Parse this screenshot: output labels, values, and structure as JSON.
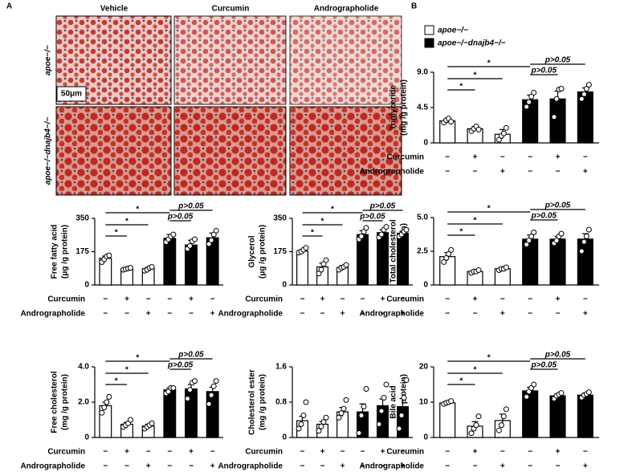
{
  "panel_labels": [
    "A",
    "B"
  ],
  "histology": {
    "columns": [
      "Vehicle",
      "Curcumin",
      "Andrographolide"
    ],
    "rows": [
      "apoe−/−",
      "apoe−/−dnajb4−/−"
    ],
    "scale_bar": "50μm"
  },
  "treatments": {
    "rows": [
      {
        "label": "Curcumin",
        "signs": [
          "−",
          "+",
          "−",
          "−",
          "+",
          "−"
        ]
      },
      {
        "label": "Andrographolide",
        "signs": [
          "−",
          "−",
          "+",
          "−",
          "−",
          "+"
        ]
      }
    ]
  },
  "chart_data": [
    {
      "type": "bar",
      "ylabel": [
        "Triglyceride",
        "(mg /g protein)"
      ],
      "ylim": [
        0,
        9
      ],
      "yticks": [
        0,
        4.5,
        {
          "value": 9,
          "label": "9.0"
        }
      ],
      "brackets": [
        "*",
        "*",
        "*",
        "p>0.05",
        "p>0.05"
      ],
      "series": [
        {
          "name": "apoe−/−",
          "color": "#ffffff",
          "values": [
            2.8,
            1.8,
            1.1
          ],
          "errors": [
            0.3,
            0.3,
            0.6
          ],
          "points": [
            [
              2.6,
              2.9,
              3.1,
              2.7
            ],
            [
              1.5,
              1.8,
              2.1,
              1.7
            ],
            [
              0.4,
              0.9,
              1.2,
              1.9
            ]
          ]
        },
        {
          "name": "apoe−/−dnajb4−/−",
          "color": "#000000",
          "values": [
            5.5,
            5.6,
            6.5
          ],
          "errors": [
            0.6,
            1.0,
            0.5
          ],
          "points": [
            [
              4.6,
              5.2,
              5.9,
              6.4
            ],
            [
              3.3,
              5.6,
              6.8,
              6.9
            ],
            [
              5.6,
              6.2,
              6.9,
              7.4
            ]
          ]
        }
      ]
    },
    {
      "type": "bar",
      "ylabel": [
        "Total cholesterol",
        "(mg /g protein)"
      ],
      "ylim": [
        0,
        5
      ],
      "yticks": [
        0,
        2.5,
        {
          "value": 5,
          "label": "5.0"
        }
      ],
      "brackets": [
        "*",
        "*",
        "*",
        "p>0.05",
        "p>0.05"
      ],
      "series": [
        {
          "name": "apoe−/−",
          "color": "#ffffff",
          "values": [
            2.1,
            1.0,
            1.2
          ],
          "errors": [
            0.3,
            0.1,
            0.1
          ],
          "points": [
            [
              1.7,
              2.0,
              2.3,
              2.6
            ],
            [
              0.9,
              1.0,
              1.0,
              1.1
            ],
            [
              1.1,
              1.2,
              1.2,
              1.3
            ]
          ]
        },
        {
          "name": "apoe−/−dnajb4−/−",
          "color": "#000000",
          "values": [
            3.4,
            3.4,
            3.4
          ],
          "errors": [
            0.3,
            0.2,
            0.4
          ],
          "points": [
            [
              3.0,
              3.3,
              3.6,
              3.9
            ],
            [
              3.1,
              3.3,
              3.6,
              3.8
            ],
            [
              2.5,
              3.2,
              3.6,
              4.1
            ]
          ]
        }
      ]
    },
    {
      "type": "bar",
      "ylabel": [
        "Bile acid",
        "(mg /g protein)"
      ],
      "ylim": [
        0,
        20
      ],
      "yticks": [
        0,
        10,
        20
      ],
      "brackets": [
        "*",
        "*",
        "*",
        "p>0.05",
        "p>0.05"
      ],
      "series": [
        {
          "name": "apoe−/−",
          "color": "#ffffff",
          "values": [
            9.8,
            3.2,
            4.8
          ],
          "errors": [
            0.5,
            1.3,
            1.8
          ],
          "points": [
            [
              9.5,
              9.8,
              10,
              10.3
            ],
            [
              1.2,
              2.5,
              3.5,
              6.0
            ],
            [
              2.0,
              3.5,
              6.0,
              8.0
            ]
          ]
        },
        {
          "name": "apoe−/−dnajb4−/−",
          "color": "#000000",
          "values": [
            13.2,
            11.8,
            12.0
          ],
          "errors": [
            1.0,
            0.6,
            0.6
          ],
          "points": [
            [
              11.5,
              13,
              14,
              15
            ],
            [
              11,
              11.8,
              12.2,
              12.6
            ],
            [
              11.3,
              12,
              12.3,
              12.8
            ]
          ]
        }
      ]
    },
    {
      "type": "bar",
      "ylabel": [
        "Free fatty acid",
        "(μg /g protein)"
      ],
      "ylim": [
        0,
        350
      ],
      "yticks": [
        0,
        175,
        350
      ],
      "brackets": [
        "*",
        "*",
        "*",
        "p>0.05",
        "p>0.05"
      ],
      "series": [
        {
          "name": "apoe−/−",
          "color": "#ffffff",
          "values": [
            140,
            85,
            85
          ],
          "errors": [
            12,
            5,
            8
          ],
          "points": [
            [
              120,
              135,
              150,
              155
            ],
            [
              80,
              83,
              87,
              90
            ],
            [
              75,
              80,
              90,
              95
            ]
          ]
        },
        {
          "name": "apoe−/−dnajb4−/−",
          "color": "#000000",
          "values": [
            245,
            210,
            248
          ],
          "errors": [
            20,
            25,
            25
          ],
          "points": [
            [
              225,
              240,
              255,
              265
            ],
            [
              190,
              205,
              230,
              240
            ],
            [
              215,
              235,
              265,
              285
            ]
          ]
        }
      ]
    },
    {
      "type": "bar",
      "ylabel": [
        "Glycerol",
        "(μg /g protein)"
      ],
      "ylim": [
        0,
        350
      ],
      "yticks": [
        0,
        175,
        350
      ],
      "brackets": [
        "*",
        "*",
        "*",
        "p>0.05",
        "p>0.05"
      ],
      "series": [
        {
          "name": "apoe−/−",
          "color": "#ffffff",
          "values": [
            178,
            95,
            92
          ],
          "errors": [
            8,
            20,
            10
          ],
          "points": [
            [
              170,
              175,
              185,
              195
            ],
            [
              60,
              80,
              110,
              130
            ],
            [
              80,
              90,
              95,
              105
            ]
          ]
        },
        {
          "name": "apoe−/−dnajb4−/−",
          "color": "#000000",
          "values": [
            265,
            275,
            272
          ],
          "errors": [
            20,
            15,
            10
          ],
          "points": [
            [
              240,
              255,
              280,
              300
            ],
            [
              250,
              265,
              290,
              305
            ],
            [
              255,
              265,
              280,
              290
            ]
          ]
        }
      ]
    },
    {
      "type": "bar",
      "ylabel": [
        "Free cholesterol",
        "(mg /g protein)"
      ],
      "ylim": [
        0,
        4
      ],
      "yticks": [
        0,
        {
          "value": 2,
          "label": "2.0"
        },
        {
          "value": 4,
          "label": "4.0"
        }
      ],
      "brackets": [
        "*",
        "*",
        "*",
        "p>0.05",
        "p>0.05"
      ],
      "series": [
        {
          "name": "apoe−/−",
          "color": "#ffffff",
          "values": [
            1.8,
            0.75,
            0.65
          ],
          "errors": [
            0.2,
            0.1,
            0.1
          ],
          "points": [
            [
              1.4,
              1.7,
              2.0,
              2.3
            ],
            [
              0.6,
              0.7,
              0.8,
              1.0
            ],
            [
              0.5,
              0.6,
              0.7,
              0.8
            ]
          ]
        },
        {
          "name": "apoe−/−dnajb4−/−",
          "color": "#000000",
          "values": [
            2.7,
            2.75,
            2.6
          ],
          "errors": [
            0.1,
            0.25,
            0.25
          ],
          "points": [
            [
              2.5,
              2.6,
              2.8,
              2.8
            ],
            [
              2.2,
              2.7,
              3.1,
              3.2
            ],
            [
              1.9,
              2.4,
              2.9,
              3.2
            ]
          ]
        }
      ]
    },
    {
      "type": "bar",
      "ylabel": [
        "Cholesterol ester",
        "(mg /g protein)"
      ],
      "ylim": [
        0,
        1.6
      ],
      "yticks": [
        0,
        0.8,
        1.6
      ],
      "brackets": [],
      "series": [
        {
          "name": "apoe−/−",
          "color": "#ffffff",
          "values": [
            0.38,
            0.3,
            0.58
          ],
          "errors": [
            0.1,
            0.06,
            0.1
          ],
          "points": [
            [
              0.2,
              0.3,
              0.5,
              0.8
            ],
            [
              0.15,
              0.25,
              0.35,
              0.45
            ],
            [
              0.45,
              0.55,
              0.65,
              0.85
            ]
          ]
        },
        {
          "name": "apoe−/−dnajb4−/−",
          "color": "#000000",
          "values": [
            0.58,
            0.72,
            0.7
          ],
          "errors": [
            0.18,
            0.15,
            0.18
          ],
          "points": [
            [
              0.1,
              0.5,
              0.7,
              1.1
            ],
            [
              0.3,
              0.6,
              0.9,
              1.2
            ],
            [
              0.2,
              0.5,
              0.9,
              1.3
            ]
          ]
        }
      ]
    }
  ]
}
